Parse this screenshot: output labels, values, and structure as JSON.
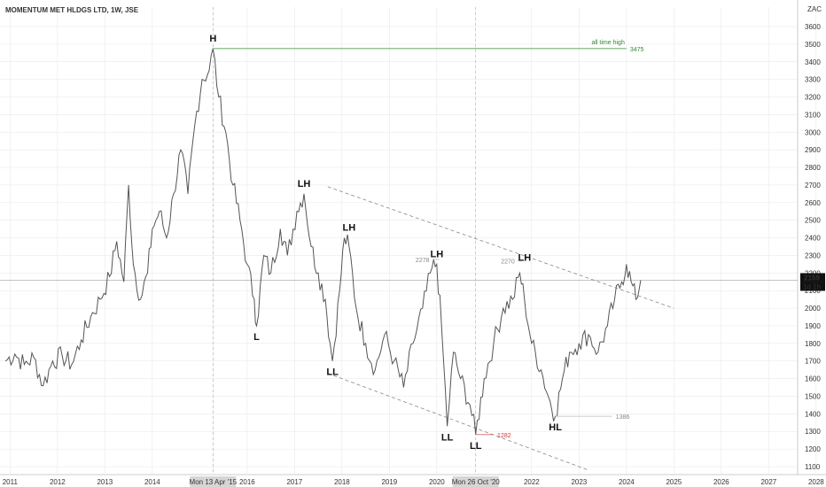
{
  "chart_data": {
    "type": "line",
    "title": "MOMENTUM MET HLDGS LTD, 1W, JSE",
    "currency": "ZAC",
    "xlabel": "",
    "ylabel": "",
    "x_ticks": [
      {
        "t": 2011.0,
        "label": "2011"
      },
      {
        "t": 2012.0,
        "label": "2012"
      },
      {
        "t": 2013.0,
        "label": "2013"
      },
      {
        "t": 2014.0,
        "label": "2014"
      },
      {
        "t": 2015.28,
        "label": "Mon 13 Apr '15",
        "highlight": true
      },
      {
        "t": 2016.0,
        "label": "2016"
      },
      {
        "t": 2017.0,
        "label": "2017"
      },
      {
        "t": 2018.0,
        "label": "2018"
      },
      {
        "t": 2019.0,
        "label": "2019"
      },
      {
        "t": 2020.0,
        "label": "2020"
      },
      {
        "t": 2020.82,
        "label": "Mon 26 Oct '20",
        "highlight": true
      },
      {
        "t": 2022.0,
        "label": "2022"
      },
      {
        "t": 2023.0,
        "label": "2023"
      },
      {
        "t": 2024.0,
        "label": "2024"
      },
      {
        "t": 2025.0,
        "label": "2025"
      },
      {
        "t": 2026.0,
        "label": "2026"
      },
      {
        "t": 2027.0,
        "label": "2027"
      },
      {
        "t": 2028.0,
        "label": "2028"
      }
    ],
    "y_ticks": [
      1100,
      1200,
      1300,
      1400,
      1500,
      1600,
      1700,
      1800,
      1900,
      2000,
      2100,
      2200,
      2300,
      2400,
      2500,
      2600,
      2700,
      2800,
      2900,
      3000,
      3100,
      3200,
      3300,
      3400,
      3500,
      3600
    ],
    "ylim": [
      1050,
      3680
    ],
    "xlim": [
      2010.85,
      2028.3
    ],
    "series": [
      {
        "points": [
          [
            2010.9,
            1700
          ],
          [
            2011.1,
            1740
          ],
          [
            2011.3,
            1680
          ],
          [
            2011.5,
            1720
          ],
          [
            2011.7,
            1560
          ],
          [
            2011.9,
            1700
          ],
          [
            2012.1,
            1730
          ],
          [
            2012.3,
            1680
          ],
          [
            2012.5,
            1820
          ],
          [
            2012.7,
            1950
          ],
          [
            2012.9,
            2050
          ],
          [
            2013.1,
            2180
          ],
          [
            2013.25,
            2380
          ],
          [
            2013.4,
            2150
          ],
          [
            2013.5,
            2700
          ],
          [
            2013.6,
            2250
          ],
          [
            2013.75,
            2050
          ],
          [
            2013.9,
            2200
          ],
          [
            2014.0,
            2450
          ],
          [
            2014.15,
            2550
          ],
          [
            2014.3,
            2400
          ],
          [
            2014.45,
            2650
          ],
          [
            2014.6,
            2900
          ],
          [
            2014.75,
            2650
          ],
          [
            2014.9,
            3050
          ],
          [
            2015.05,
            3300
          ],
          [
            2015.2,
            3350
          ],
          [
            2015.28,
            3475
          ],
          [
            2015.4,
            3200
          ],
          [
            2015.55,
            3000
          ],
          [
            2015.7,
            2700
          ],
          [
            2015.85,
            2500
          ],
          [
            2016.0,
            2250
          ],
          [
            2016.15,
            2050
          ],
          [
            2016.2,
            1900
          ],
          [
            2016.35,
            2300
          ],
          [
            2016.5,
            2200
          ],
          [
            2016.7,
            2450
          ],
          [
            2016.85,
            2300
          ],
          [
            2017.05,
            2550
          ],
          [
            2017.2,
            2650
          ],
          [
            2017.35,
            2350
          ],
          [
            2017.5,
            2200
          ],
          [
            2017.65,
            2050
          ],
          [
            2017.75,
            1800
          ],
          [
            2017.8,
            1700
          ],
          [
            2017.95,
            2100
          ],
          [
            2018.05,
            2400
          ],
          [
            2018.15,
            2350
          ],
          [
            2018.3,
            2000
          ],
          [
            2018.5,
            1800
          ],
          [
            2018.7,
            1650
          ],
          [
            2018.9,
            1850
          ],
          [
            2019.1,
            1700
          ],
          [
            2019.3,
            1550
          ],
          [
            2019.5,
            1800
          ],
          [
            2019.7,
            2000
          ],
          [
            2019.9,
            2230
          ],
          [
            2020.0,
            2250
          ],
          [
            2020.1,
            1900
          ],
          [
            2020.22,
            1330
          ],
          [
            2020.35,
            1750
          ],
          [
            2020.5,
            1600
          ],
          [
            2020.7,
            1450
          ],
          [
            2020.82,
            1282
          ],
          [
            2021.0,
            1600
          ],
          [
            2021.2,
            1800
          ],
          [
            2021.4,
            2000
          ],
          [
            2021.6,
            2050
          ],
          [
            2021.75,
            2200
          ],
          [
            2021.85,
            2050
          ],
          [
            2022.0,
            1800
          ],
          [
            2022.2,
            1650
          ],
          [
            2022.35,
            1500
          ],
          [
            2022.5,
            1386
          ],
          [
            2022.65,
            1600
          ],
          [
            2022.8,
            1750
          ],
          [
            2023.0,
            1800
          ],
          [
            2023.2,
            1850
          ],
          [
            2023.4,
            1750
          ],
          [
            2023.6,
            1900
          ],
          [
            2023.75,
            2050
          ],
          [
            2023.9,
            2150
          ],
          [
            2024.0,
            2250
          ],
          [
            2024.1,
            2150
          ],
          [
            2024.2,
            2050
          ],
          [
            2024.3,
            2159
          ]
        ]
      }
    ],
    "reference_lines": {
      "all_time_high": {
        "label": "all time high",
        "value": "3475",
        "y": 3475,
        "x_start": 2015.28,
        "x_end": 2024.0
      },
      "last_price": {
        "value": "2159",
        "y": 2159
      },
      "level_2278": {
        "label": "2278",
        "y": 2278,
        "x_start": 2019.9,
        "x_end": 2020.05
      },
      "level_2270": {
        "label": "2270",
        "y": 2270,
        "x_start": 2021.7,
        "x_end": 2021.85
      },
      "level_1386": {
        "label": "1386",
        "y": 1386,
        "x_start": 2022.5,
        "x_end": 2023.7
      },
      "level_1282": {
        "label": "1282",
        "y": 1282,
        "x_start": 2020.82,
        "x_end": 2021.2
      }
    },
    "countdown": "1d 1h",
    "channel": {
      "upper": [
        [
          2017.7,
          2690
        ],
        [
          2025.0,
          2000
        ]
      ],
      "lower": [
        [
          2017.7,
          1630
        ],
        [
          2023.2,
          1080
        ]
      ]
    },
    "annotations": [
      {
        "text": "H",
        "t": 2015.28,
        "y": 3475,
        "pos": "above"
      },
      {
        "text": "LH",
        "t": 2017.2,
        "y": 2650,
        "pos": "above"
      },
      {
        "text": "LH",
        "t": 2018.15,
        "y": 2400,
        "pos": "above"
      },
      {
        "text": "LH",
        "t": 2020.0,
        "y": 2250,
        "pos": "above"
      },
      {
        "text": "LH",
        "t": 2021.85,
        "y": 2230,
        "pos": "above"
      },
      {
        "text": "L",
        "t": 2016.2,
        "y": 1900,
        "pos": "below"
      },
      {
        "text": "LL",
        "t": 2017.8,
        "y": 1700,
        "pos": "below"
      },
      {
        "text": "LL",
        "t": 2020.22,
        "y": 1330,
        "pos": "below"
      },
      {
        "text": "LL",
        "t": 2020.82,
        "y": 1282,
        "pos": "below"
      },
      {
        "text": "HL",
        "t": 2022.5,
        "y": 1386,
        "pos": "below"
      }
    ],
    "colors": {
      "ath_line": "#2e8b2e",
      "price_line": "#555555",
      "level_line": "#bbbbbb",
      "low_line": "#e06666",
      "low_text": "#e03030",
      "channel": "#888888",
      "grid": "#e6e6e6",
      "label_box": "#d6d6d6",
      "price_box": "#111111"
    }
  }
}
